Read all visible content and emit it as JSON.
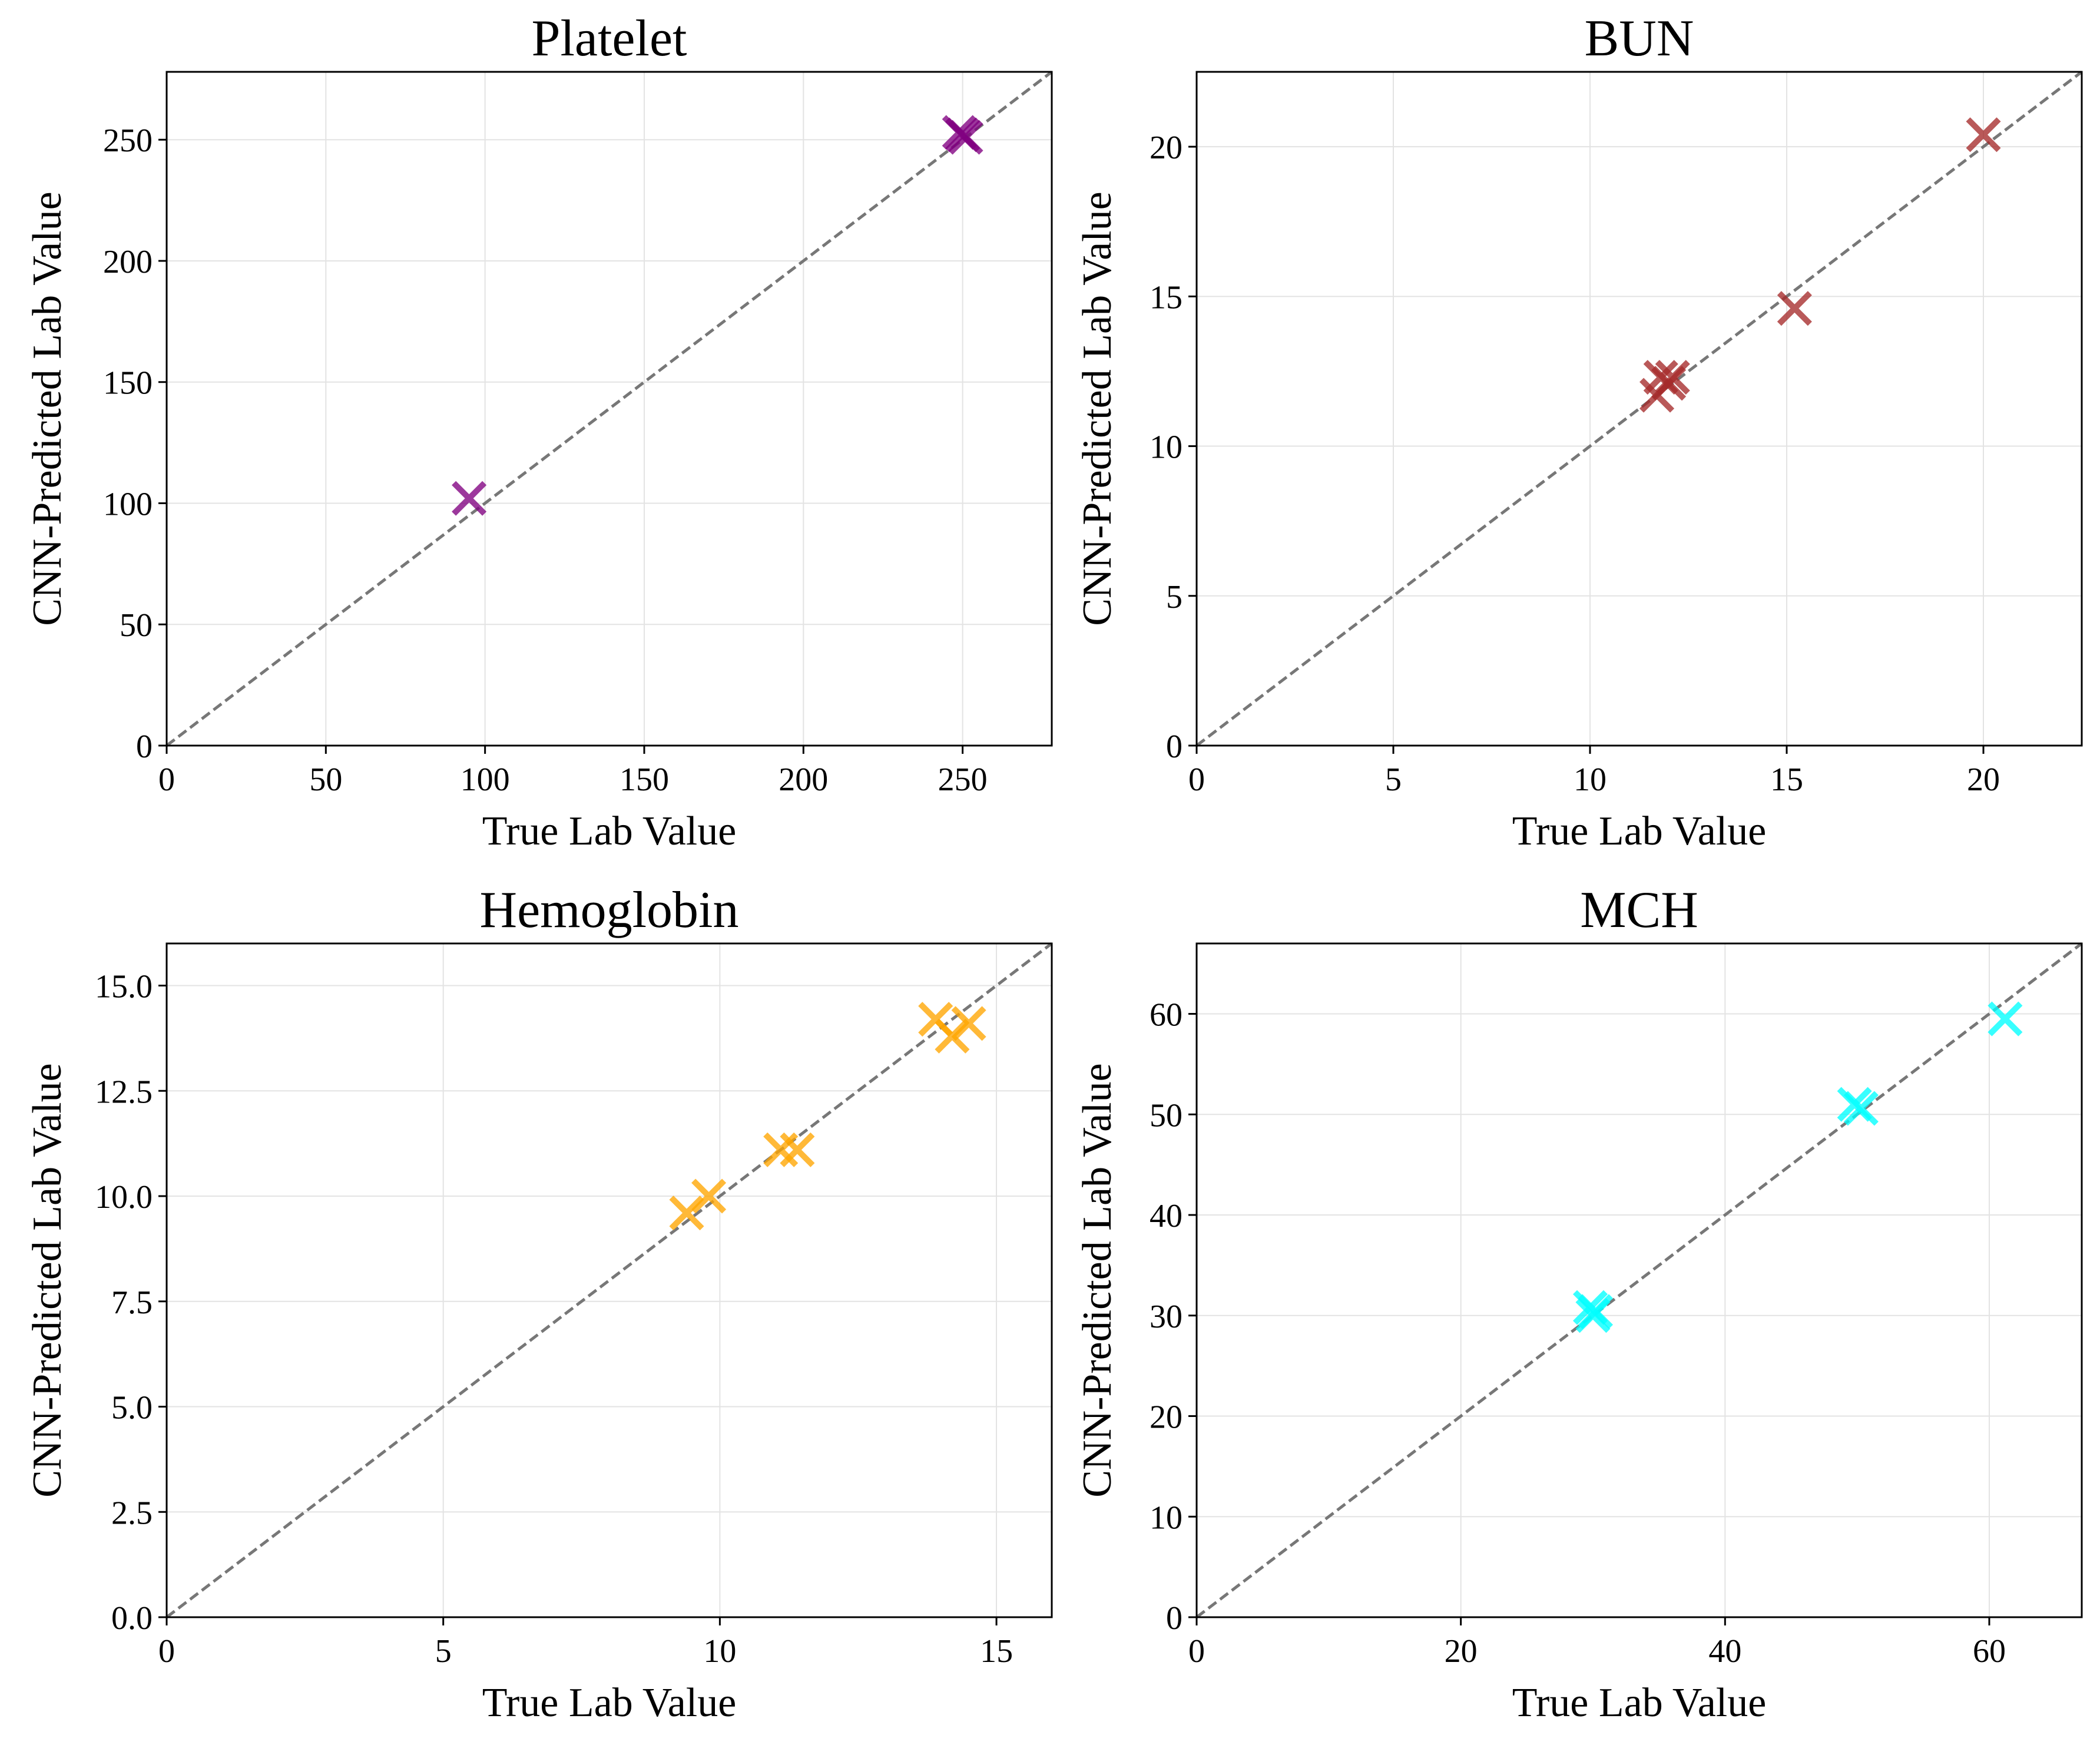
{
  "chart_data": [
    {
      "type": "scatter",
      "title": "Platelet",
      "xlabel": "True Lab Value",
      "ylabel": "CNN-Predicted Lab Value",
      "xlim": [
        0,
        278
      ],
      "ylim": [
        0,
        278
      ],
      "xticks": [
        0,
        50,
        100,
        150,
        200,
        250
      ],
      "yticks": [
        0,
        50,
        100,
        150,
        200,
        250
      ],
      "grid": true,
      "marker": "x",
      "color": "#800080",
      "reference_line": "y = x",
      "points": [
        {
          "x": 95,
          "y": 102
        },
        {
          "x": 249,
          "y": 253
        },
        {
          "x": 251,
          "y": 251
        },
        {
          "x": 250,
          "y": 252
        }
      ]
    },
    {
      "type": "scatter",
      "title": "BUN",
      "xlabel": "True Lab Value",
      "ylabel": "CNN-Predicted Lab Value",
      "xlim": [
        0,
        22.5
      ],
      "ylim": [
        0,
        22.5
      ],
      "xticks": [
        0,
        5,
        10,
        15,
        20
      ],
      "yticks": [
        0,
        5,
        10,
        15,
        20
      ],
      "grid": true,
      "marker": "x",
      "color": "#a52a2a",
      "reference_line": "y = x",
      "points": [
        {
          "x": 11.7,
          "y": 11.7
        },
        {
          "x": 11.8,
          "y": 12.3
        },
        {
          "x": 12.0,
          "y": 12.1
        },
        {
          "x": 12.1,
          "y": 12.3
        },
        {
          "x": 15.2,
          "y": 14.6
        },
        {
          "x": 20.0,
          "y": 20.4
        }
      ]
    },
    {
      "type": "scatter",
      "title": "Hemoglobin",
      "xlabel": "True Lab Value",
      "ylabel": "CNN-Predicted Lab Value",
      "xlim": [
        0,
        16
      ],
      "ylim": [
        0,
        16
      ],
      "xticks": [
        0,
        5,
        10,
        15
      ],
      "yticks": [
        0.0,
        2.5,
        5.0,
        7.5,
        10.0,
        12.5,
        15.0
      ],
      "ytick_labels": [
        "0.0",
        "2.5",
        "5.0",
        "7.5",
        "10.0",
        "12.5",
        "15.0"
      ],
      "grid": true,
      "marker": "x",
      "color": "#ffa500",
      "reference_line": "y = x",
      "points": [
        {
          "x": 9.4,
          "y": 9.6
        },
        {
          "x": 9.8,
          "y": 10.0
        },
        {
          "x": 11.1,
          "y": 11.1
        },
        {
          "x": 11.4,
          "y": 11.1
        },
        {
          "x": 13.9,
          "y": 14.2
        },
        {
          "x": 14.2,
          "y": 13.8
        },
        {
          "x": 14.5,
          "y": 14.1
        }
      ]
    },
    {
      "type": "scatter",
      "title": "MCH",
      "xlabel": "True Lab Value",
      "ylabel": "CNN-Predicted Lab Value",
      "xlim": [
        0,
        67
      ],
      "ylim": [
        0,
        67
      ],
      "xticks": [
        0,
        20,
        40,
        60
      ],
      "yticks": [
        0,
        10,
        20,
        30,
        40,
        50,
        60
      ],
      "grid": true,
      "marker": "x",
      "color": "#00ffff",
      "reference_line": "y = x",
      "points": [
        {
          "x": 29.8,
          "y": 30.8
        },
        {
          "x": 30.0,
          "y": 30.0
        },
        {
          "x": 30.2,
          "y": 30.4
        },
        {
          "x": 49.8,
          "y": 51.0
        },
        {
          "x": 50.3,
          "y": 50.6
        },
        {
          "x": 61.2,
          "y": 59.5
        }
      ]
    }
  ]
}
